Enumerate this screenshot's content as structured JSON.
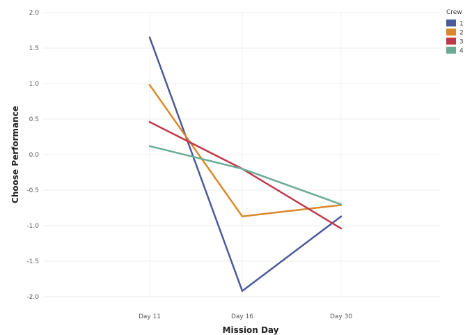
{
  "chart_data": {
    "type": "line",
    "title": "",
    "xlabel": "Mission Day",
    "ylabel": "Choose Performance",
    "categories": [
      "Day 11",
      "Day 16",
      "Day 30"
    ],
    "ylim": [
      -2.0,
      2.0
    ],
    "yticks": [
      "2.0",
      "1.5",
      "1.0",
      "0.5",
      "0.0",
      "-0.5",
      "-1.0",
      "-1.5",
      "-2.0"
    ],
    "grid": true,
    "legend": {
      "title": "Crew",
      "position": "top-right"
    },
    "series": [
      {
        "name": "1",
        "color": "#4a5a9a",
        "values": [
          1.65,
          -1.92,
          -0.87
        ]
      },
      {
        "name": "2",
        "color": "#d9882a",
        "values": [
          0.98,
          -0.87,
          -0.71
        ]
      },
      {
        "name": "3",
        "color": "#c0394b",
        "values": [
          0.46,
          -0.2,
          -1.04
        ]
      },
      {
        "name": "4",
        "color": "#6aab95",
        "values": [
          0.12,
          -0.2,
          -0.7
        ]
      }
    ]
  }
}
